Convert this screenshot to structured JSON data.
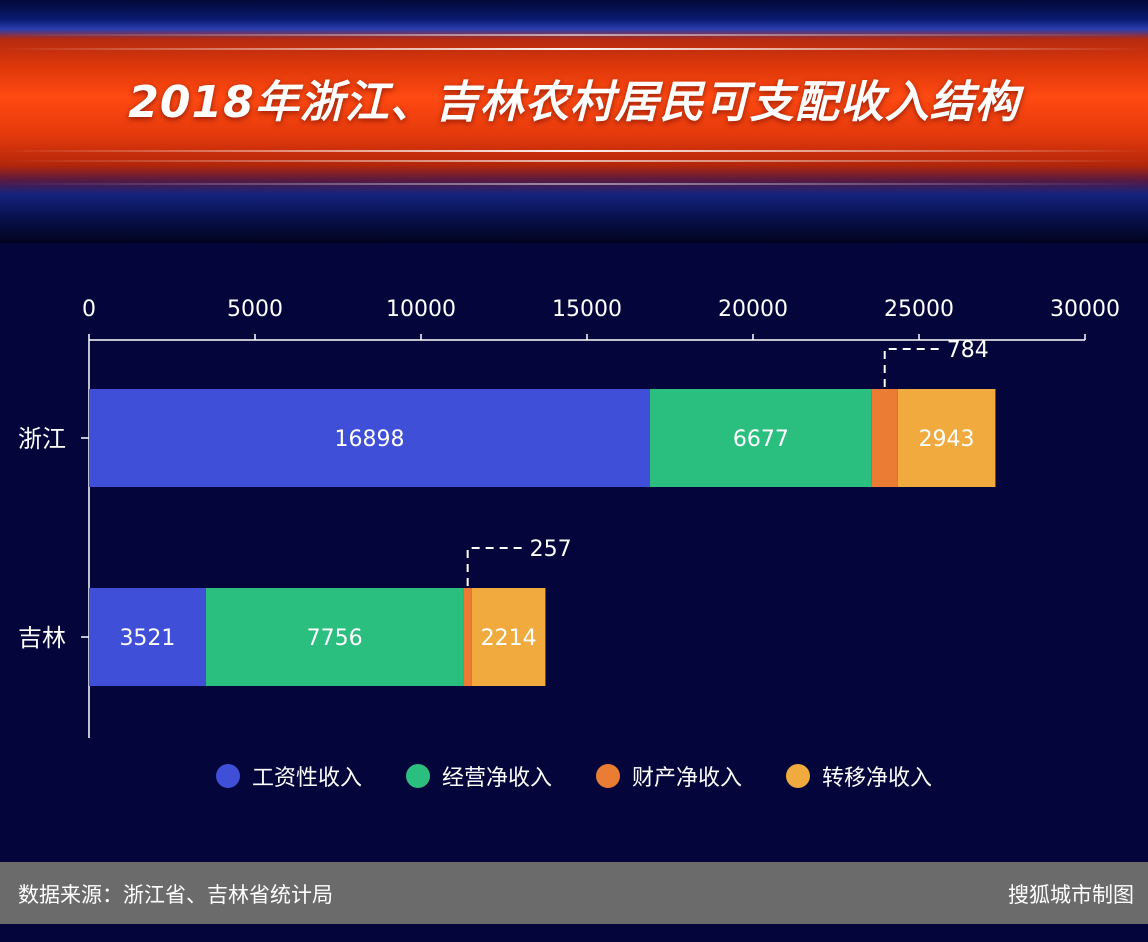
{
  "title": "2018年浙江、吉林农村居民可支配收入结构",
  "chart_data": {
    "type": "bar",
    "orientation": "horizontal",
    "stacked": true,
    "title": "2018年浙江、吉林农村居民可支配收入结构",
    "categories": [
      "浙江",
      "吉林"
    ],
    "xlim": [
      0,
      30000
    ],
    "x_ticks": [
      0,
      5000,
      10000,
      15000,
      20000,
      25000,
      30000
    ],
    "axis_position": "top",
    "grid": false,
    "legend_position": "bottom",
    "series": [
      {
        "name": "工资性收入",
        "color": "#3f4fd8",
        "values": [
          16898,
          3521
        ]
      },
      {
        "name": "经营净收入",
        "color": "#2bbf7f",
        "values": [
          6677,
          7756
        ]
      },
      {
        "name": "财产净收入",
        "color": "#ea7d33",
        "values": [
          784,
          257
        ]
      },
      {
        "name": "转移净收入",
        "color": "#f0aa3e",
        "values": [
          2943,
          2214
        ]
      }
    ]
  },
  "footer": {
    "source": "数据来源：浙江省、吉林省统计局",
    "credit": "搜狐城市制图"
  }
}
